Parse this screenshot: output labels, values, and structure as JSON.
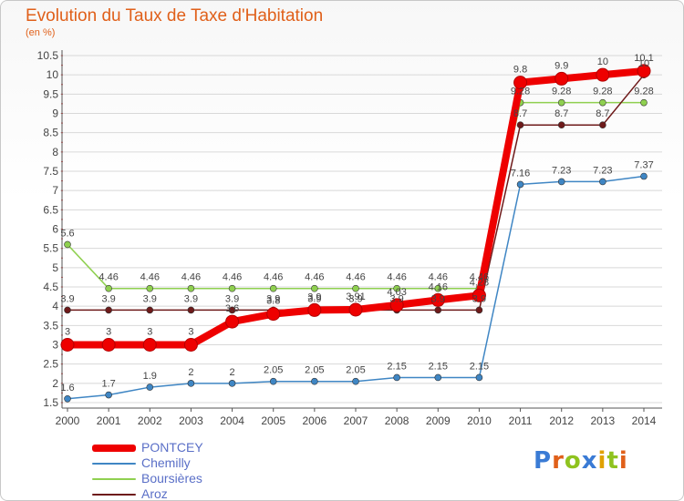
{
  "title": "Evolution du Taux de Taxe d'Habitation",
  "unit": "(en %)",
  "logo": "Proxiti",
  "colors": {
    "pontcey": "#ee0000",
    "chemilly": "#3f86c4",
    "boursieres": "#8fd050",
    "aroz": "#6e1a1a",
    "grid": "#d8d8d8",
    "axis": "#555555",
    "label": "#444444"
  },
  "chart_data": {
    "type": "line",
    "x": [
      2000,
      2001,
      2002,
      2003,
      2004,
      2005,
      2006,
      2007,
      2008,
      2009,
      2010,
      2011,
      2012,
      2013,
      2014
    ],
    "xlabel": "",
    "ylabel": "",
    "ylim": [
      1.5,
      10.5
    ],
    "yticks": [
      1.5,
      2,
      2.5,
      3,
      3.5,
      4,
      4.5,
      5,
      5.5,
      6,
      6.5,
      7,
      7.5,
      8,
      8.5,
      9,
      9.5,
      10,
      10.5
    ],
    "grid": "horizontal",
    "legend_position": "bottom-left",
    "series": [
      {
        "name": "PONTCEY",
        "key": "pontcey",
        "values": [
          3,
          3,
          3,
          3,
          3.6,
          3.8,
          3.9,
          3.91,
          4.03,
          4.16,
          4.28,
          9.8,
          9.9,
          10,
          10.1
        ]
      },
      {
        "name": "Chemilly",
        "key": "chemilly",
        "values": [
          1.6,
          1.7,
          1.9,
          2,
          2,
          2.05,
          2.05,
          2.05,
          2.15,
          2.15,
          2.15,
          7.16,
          7.23,
          7.23,
          7.37
        ]
      },
      {
        "name": "Boursières",
        "key": "boursieres",
        "values": [
          5.6,
          4.46,
          4.46,
          4.46,
          4.46,
          4.46,
          4.46,
          4.46,
          4.46,
          4.46,
          4.46,
          9.28,
          9.28,
          9.28,
          9.28
        ]
      },
      {
        "name": "Aroz",
        "key": "aroz",
        "values": [
          3.9,
          3.9,
          3.9,
          3.9,
          3.9,
          3.9,
          3.9,
          3.9,
          3.9,
          3.9,
          3.9,
          8.7,
          8.7,
          8.7,
          10
        ]
      }
    ]
  }
}
